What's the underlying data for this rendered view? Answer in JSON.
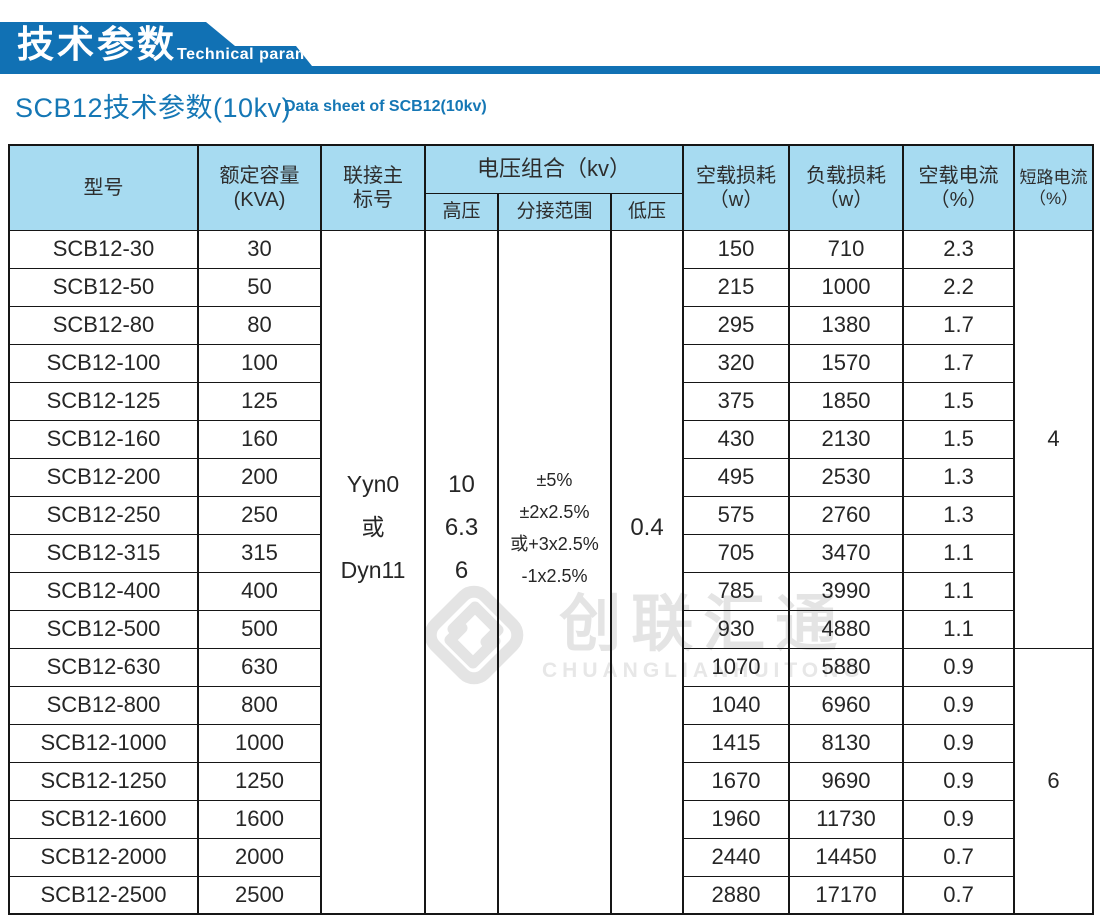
{
  "banner": {
    "title": "技术参数",
    "subtitle": "Technical parameter",
    "accent_color": "#1171b4"
  },
  "page": {
    "heading_cn": "SCB12技术参数(10kv)",
    "heading_en": "Data sheet of SCB12(10kv)",
    "heading_color": "#1577b5"
  },
  "watermark": {
    "logo": "diamond-logo",
    "text_cn": "创联汇通",
    "text_en": "CHUANGLIANHUITONG"
  },
  "table": {
    "header_bg": "#a7dbf1",
    "headers": {
      "model": "型号",
      "capacity_l1": "额定容量",
      "capacity_l2": "(KVA)",
      "connection_l1": "联接主",
      "connection_l2": "标号",
      "voltage_group": "电压组合（kv）",
      "hv": "高压",
      "tap": "分接范围",
      "lv": "低压",
      "no_load_loss_l1": "空载损耗",
      "no_load_loss_l2": "（w）",
      "load_loss_l1": "负载损耗",
      "load_loss_l2": "（w）",
      "no_load_current_l1": "空载电流",
      "no_load_current_l2": "（%）",
      "short_circuit_l1": "短路电流",
      "short_circuit_l2": "（%）"
    },
    "merged": {
      "connection": [
        "Yyn0",
        "或",
        "Dyn11"
      ],
      "hv": [
        "10",
        "6.3",
        "6"
      ],
      "tap": [
        "±5%",
        "±2x2.5%",
        "或+3x2.5%",
        "-1x2.5%"
      ],
      "lv": [
        "0.4"
      ],
      "short_circuit_top": "4",
      "short_circuit_top_rows": 11,
      "short_circuit_bottom": "6",
      "short_circuit_bottom_rows": 7
    },
    "rows": [
      {
        "model": "SCB12-30",
        "capacity": "30",
        "no_load_loss": "150",
        "load_loss": "710",
        "no_load_current": "2.3"
      },
      {
        "model": "SCB12-50",
        "capacity": "50",
        "no_load_loss": "215",
        "load_loss": "1000",
        "no_load_current": "2.2"
      },
      {
        "model": "SCB12-80",
        "capacity": "80",
        "no_load_loss": "295",
        "load_loss": "1380",
        "no_load_current": "1.7"
      },
      {
        "model": "SCB12-100",
        "capacity": "100",
        "no_load_loss": "320",
        "load_loss": "1570",
        "no_load_current": "1.7"
      },
      {
        "model": "SCB12-125",
        "capacity": "125",
        "no_load_loss": "375",
        "load_loss": "1850",
        "no_load_current": "1.5"
      },
      {
        "model": "SCB12-160",
        "capacity": "160",
        "no_load_loss": "430",
        "load_loss": "2130",
        "no_load_current": "1.5"
      },
      {
        "model": "SCB12-200",
        "capacity": "200",
        "no_load_loss": "495",
        "load_loss": "2530",
        "no_load_current": "1.3"
      },
      {
        "model": "SCB12-250",
        "capacity": "250",
        "no_load_loss": "575",
        "load_loss": "2760",
        "no_load_current": "1.3"
      },
      {
        "model": "SCB12-315",
        "capacity": "315",
        "no_load_loss": "705",
        "load_loss": "3470",
        "no_load_current": "1.1"
      },
      {
        "model": "SCB12-400",
        "capacity": "400",
        "no_load_loss": "785",
        "load_loss": "3990",
        "no_load_current": "1.1"
      },
      {
        "model": "SCB12-500",
        "capacity": "500",
        "no_load_loss": "930",
        "load_loss": "4880",
        "no_load_current": "1.1"
      },
      {
        "model": "SCB12-630",
        "capacity": "630",
        "no_load_loss": "1070",
        "load_loss": "5880",
        "no_load_current": "0.9"
      },
      {
        "model": "SCB12-800",
        "capacity": "800",
        "no_load_loss": "1040",
        "load_loss": "6960",
        "no_load_current": "0.9"
      },
      {
        "model": "SCB12-1000",
        "capacity": "1000",
        "no_load_loss": "1415",
        "load_loss": "8130",
        "no_load_current": "0.9"
      },
      {
        "model": "SCB12-1250",
        "capacity": "1250",
        "no_load_loss": "1670",
        "load_loss": "9690",
        "no_load_current": "0.9"
      },
      {
        "model": "SCB12-1600",
        "capacity": "1600",
        "no_load_loss": "1960",
        "load_loss": "11730",
        "no_load_current": "0.9"
      },
      {
        "model": "SCB12-2000",
        "capacity": "2000",
        "no_load_loss": "2440",
        "load_loss": "14450",
        "no_load_current": "0.7"
      },
      {
        "model": "SCB12-2500",
        "capacity": "2500",
        "no_load_loss": "2880",
        "load_loss": "17170",
        "no_load_current": "0.7"
      }
    ]
  }
}
